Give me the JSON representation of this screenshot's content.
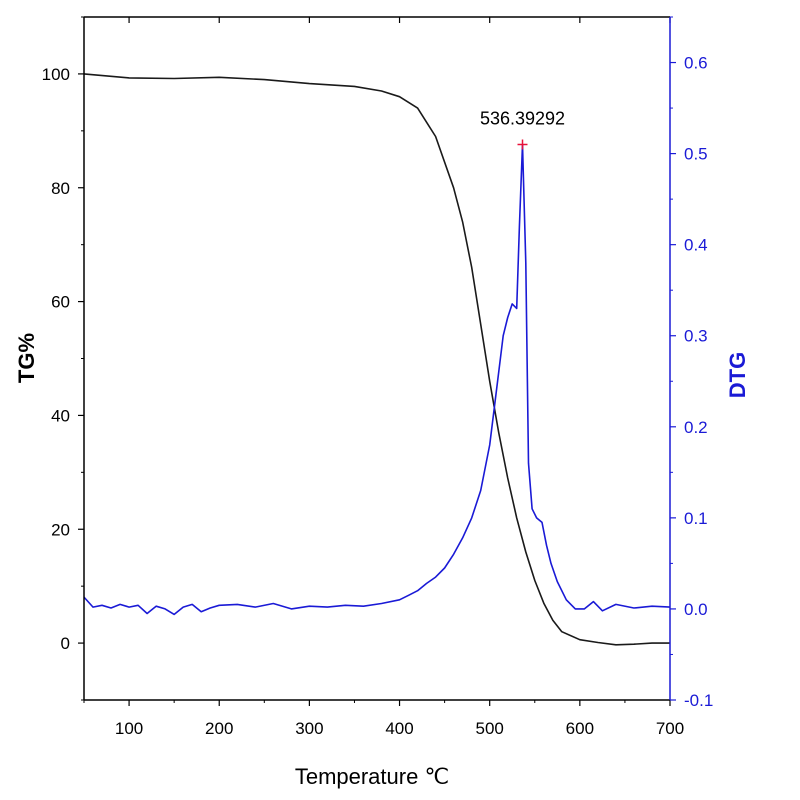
{
  "chart_data": {
    "type": "line",
    "xlabel": "Temperature ℃",
    "ylabel": "TG%",
    "y2label": "DTG",
    "xlim": [
      50,
      700
    ],
    "ylim": [
      -10,
      110
    ],
    "y2lim": [
      -0.1,
      0.65
    ],
    "x_ticks": [
      100,
      200,
      300,
      400,
      500,
      600,
      700
    ],
    "y_ticks": [
      0,
      20,
      40,
      60,
      80,
      100
    ],
    "y2_ticks": [
      -0.1,
      0.0,
      0.1,
      0.2,
      0.3,
      0.4,
      0.5,
      0.6
    ],
    "x_tick_labels": [
      "100",
      "200",
      "300",
      "400",
      "500",
      "600",
      "700"
    ],
    "y_tick_labels": [
      "0",
      "20",
      "40",
      "60",
      "80",
      "100"
    ],
    "y2_tick_labels": [
      "-0.1",
      "0.0",
      "0.1",
      "0.2",
      "0.3",
      "0.4",
      "0.5",
      "0.6"
    ],
    "grid": false,
    "series": [
      {
        "name": "TG",
        "axis": "left",
        "color": "#1a1a1a",
        "x": [
          50,
          100,
          150,
          200,
          250,
          300,
          350,
          380,
          400,
          420,
          440,
          460,
          470,
          480,
          490,
          500,
          510,
          520,
          530,
          540,
          550,
          560,
          570,
          580,
          600,
          620,
          640,
          660,
          680,
          700
        ],
        "y": [
          100,
          99.3,
          99.2,
          99.4,
          99.0,
          98.3,
          97.8,
          97.0,
          96.0,
          94.0,
          89.0,
          80.0,
          74.0,
          66.0,
          56.0,
          46.0,
          37.0,
          29.0,
          22.0,
          16.0,
          11.0,
          7.0,
          4.0,
          2.0,
          0.6,
          0.1,
          -0.3,
          -0.2,
          0.0,
          0.0
        ]
      },
      {
        "name": "DTG",
        "axis": "right",
        "color": "#1a1ad6",
        "x": [
          50,
          60,
          70,
          80,
          90,
          100,
          110,
          120,
          130,
          140,
          150,
          160,
          170,
          180,
          190,
          200,
          220,
          240,
          260,
          280,
          300,
          320,
          340,
          360,
          380,
          400,
          410,
          420,
          430,
          440,
          450,
          460,
          470,
          480,
          490,
          500,
          505,
          510,
          515,
          520,
          525,
          530,
          533,
          536.39292,
          540,
          543,
          547,
          552,
          558,
          563,
          568,
          575,
          585,
          595,
          605,
          615,
          625,
          640,
          660,
          680,
          700
        ],
        "y": [
          0.013,
          0.002,
          0.004,
          0.001,
          0.005,
          0.002,
          0.004,
          -0.005,
          0.003,
          0.0,
          -0.006,
          0.002,
          0.005,
          -0.003,
          0.001,
          0.004,
          0.005,
          0.002,
          0.006,
          0.0,
          0.003,
          0.002,
          0.004,
          0.003,
          0.006,
          0.01,
          0.015,
          0.02,
          0.028,
          0.035,
          0.045,
          0.06,
          0.078,
          0.1,
          0.13,
          0.18,
          0.22,
          0.26,
          0.3,
          0.32,
          0.335,
          0.33,
          0.42,
          0.51,
          0.38,
          0.16,
          0.11,
          0.1,
          0.095,
          0.07,
          0.05,
          0.03,
          0.01,
          0.0,
          0.0,
          0.008,
          -0.002,
          0.005,
          0.001,
          0.003,
          0.002
        ]
      }
    ],
    "annotations": [
      {
        "text": "536.39292",
        "x": 536.39292,
        "y2": 0.51,
        "marker_color": "#e8113a"
      }
    ]
  }
}
